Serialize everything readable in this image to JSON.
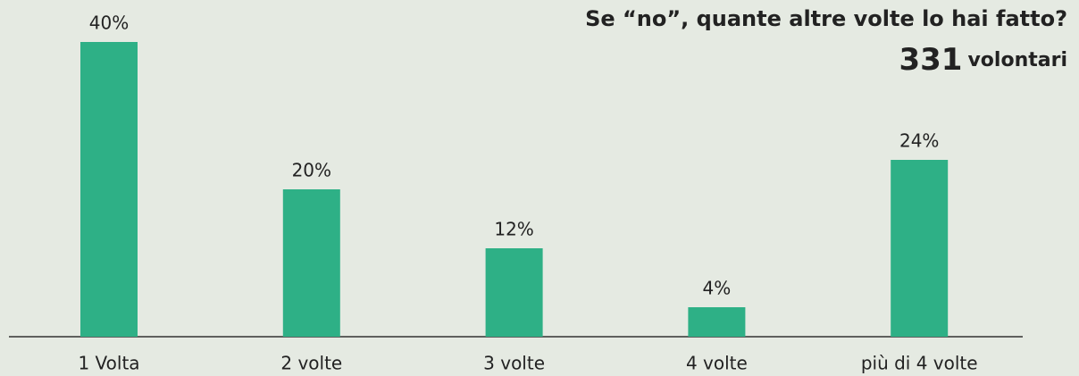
{
  "chart_data": {
    "type": "bar",
    "title": "Se “no”, quante altre volte lo hai fatto?",
    "sample_size": 331,
    "sample_label": "volontari",
    "categories": [
      "1 Volta",
      "2 volte",
      "3 volte",
      "4 volte",
      "più di 4 volte"
    ],
    "values": [
      40,
      20,
      12,
      4,
      24
    ],
    "value_labels": [
      "40%",
      "20%",
      "12%",
      "4%",
      "24%"
    ],
    "color": "#2eb086"
  }
}
